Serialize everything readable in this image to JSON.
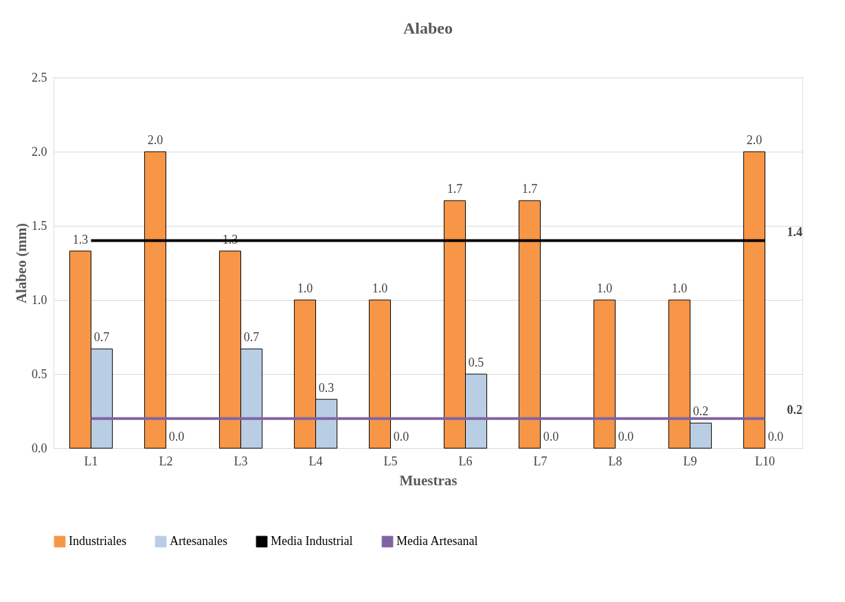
{
  "chart_data": {
    "type": "bar",
    "title": "Alabeo",
    "xlabel": "Muestras",
    "ylabel": "Alabeo (mm)",
    "categories": [
      "L1",
      "L2",
      "L3",
      "L4",
      "L5",
      "L6",
      "L7",
      "L8",
      "L9",
      "L10"
    ],
    "series": [
      {
        "name": "Industriales",
        "color": "#f79646",
        "values": [
          1.33,
          2.0,
          1.33,
          1.0,
          1.0,
          1.67,
          1.67,
          1.0,
          1.0,
          2.0
        ],
        "value_labels": [
          "1.3",
          "2.0",
          "1.3",
          "1.0",
          "1.0",
          "1.7",
          "1.7",
          "1.0",
          "1.0",
          "2.0"
        ]
      },
      {
        "name": "Artesanales",
        "color": "#b9cde5",
        "values": [
          0.67,
          0.0,
          0.67,
          0.33,
          0.0,
          0.5,
          0.0,
          0.0,
          0.17,
          0.0
        ],
        "value_labels": [
          "0.7",
          "0.0",
          "0.7",
          "0.3",
          "0.0",
          "0.5",
          "0.0",
          "0.0",
          "0.2",
          "0.0"
        ]
      },
      {
        "name": "Media Industrial",
        "type": "line",
        "color": "#000000",
        "values": [
          1.4,
          1.4,
          1.4,
          1.4,
          1.4,
          1.4,
          1.4,
          1.4,
          1.4,
          1.4
        ],
        "value_labels": [
          null,
          null,
          null,
          null,
          null,
          null,
          null,
          null,
          null,
          "1.4"
        ]
      },
      {
        "name": "Media Artesanal",
        "type": "line",
        "color": "#8064a2",
        "values": [
          0.2,
          0.2,
          0.2,
          0.2,
          0.2,
          0.2,
          0.2,
          0.2,
          0.2,
          0.2
        ],
        "value_labels": [
          null,
          null,
          null,
          null,
          null,
          null,
          null,
          null,
          null,
          "0.2"
        ]
      }
    ],
    "ylim": [
      0,
      2.5
    ],
    "yticks": [
      {
        "value": 0,
        "label": "0.0"
      },
      0.5,
      {
        "value": 1,
        "label": "1.0"
      },
      1.5,
      {
        "value": 2,
        "label": "2.0"
      },
      2.5
    ],
    "grid": "y",
    "legend": "bottom"
  }
}
